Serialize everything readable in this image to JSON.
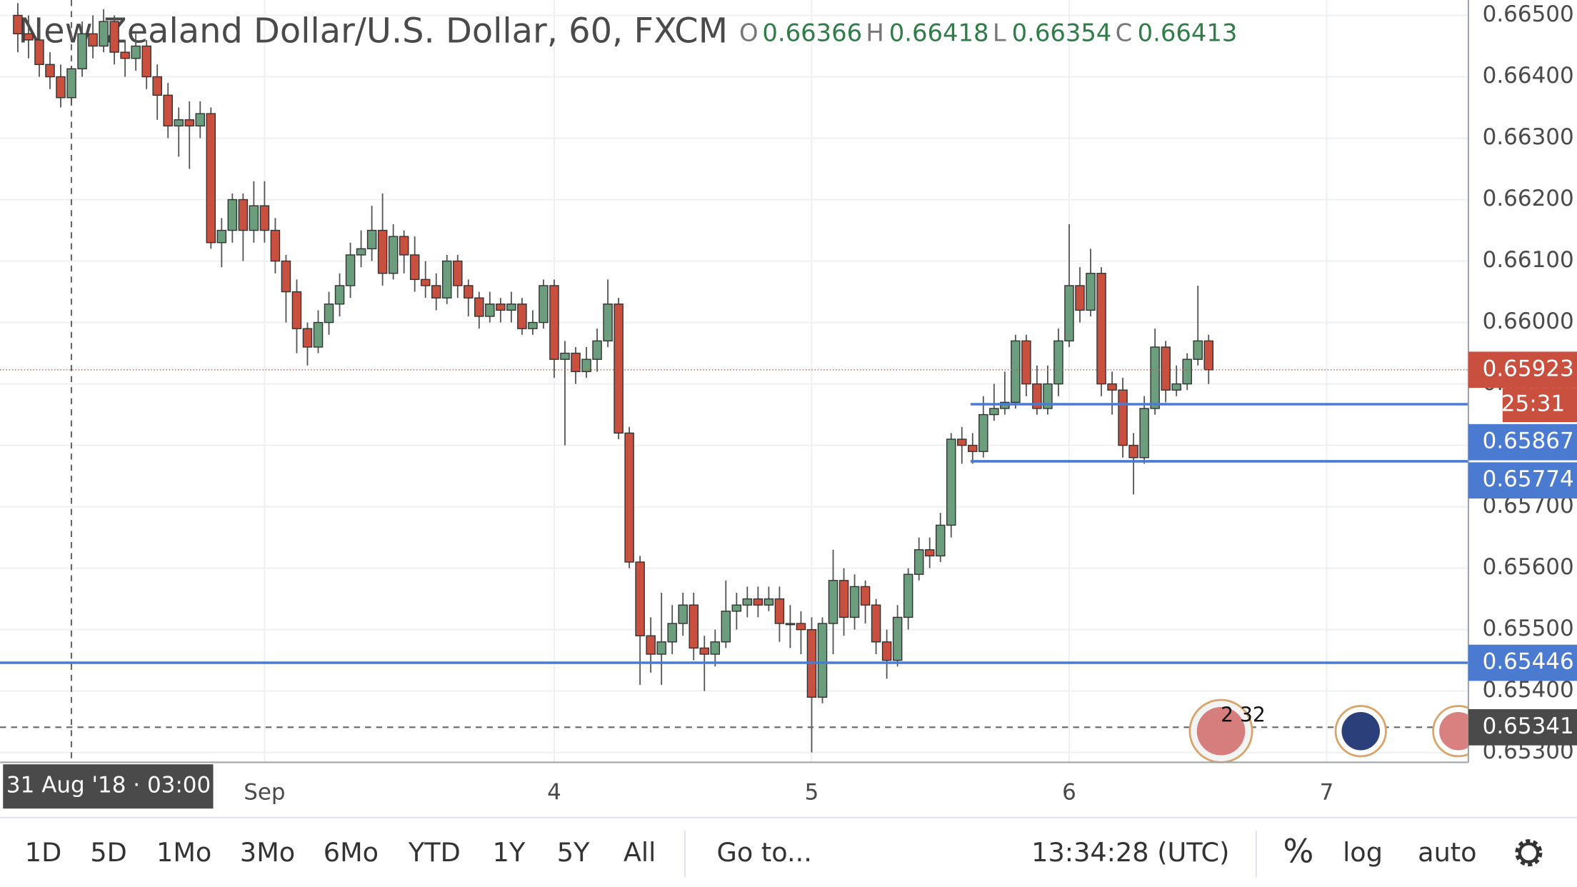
{
  "chart_data": {
    "type": "candlestick",
    "title": "New Zealand Dollar/U.S. Dollar, 60, FXCM",
    "ohlc_labels": [
      "O",
      "H",
      "L",
      "C"
    ],
    "up_color": "#6a9e7c",
    "down_color": "#c9503e",
    "categories": [
      null,
      null,
      null,
      null,
      null,
      null,
      null,
      null,
      null,
      null,
      null,
      null,
      null,
      null,
      null,
      null,
      null,
      null,
      null,
      null,
      null,
      null,
      null,
      "Sep",
      null,
      null,
      null,
      null,
      null,
      null,
      null,
      null,
      null,
      null,
      null,
      null,
      null,
      null,
      null,
      null,
      null,
      null,
      null,
      null,
      null,
      null,
      null,
      null,
      null,
      null,
      "4",
      null,
      null,
      null,
      null,
      null,
      null,
      null,
      null,
      null,
      null,
      null,
      null,
      null,
      null,
      null,
      null,
      null,
      null,
      null,
      null,
      null,
      null,
      null,
      "5",
      null,
      null,
      null,
      null,
      null,
      null,
      null,
      null,
      null,
      null,
      null,
      null,
      null,
      null,
      null,
      null,
      null,
      null,
      null,
      null,
      null,
      null,
      null,
      "6",
      null,
      null,
      null,
      null,
      null,
      null,
      null,
      null,
      null,
      null,
      null,
      null,
      null,
      null,
      null,
      null,
      null,
      null,
      null,
      null,
      null,
      null,
      null,
      "7"
    ],
    "open": [
      0.665,
      0.6647,
      0.6646,
      0.6642,
      0.664,
      0.66366,
      0.66413,
      0.6647,
      0.6645,
      0.6649,
      0.6644,
      0.6643,
      0.6645,
      0.664,
      0.6637,
      0.6632,
      0.6633,
      0.6632,
      0.6634,
      0.6613,
      0.6615,
      0.662,
      0.6615,
      0.6619,
      0.6615,
      0.661,
      0.6605,
      0.6599,
      0.6596,
      0.66,
      0.6603,
      0.6606,
      0.6611,
      0.6612,
      0.6615,
      0.6608,
      0.6614,
      0.6611,
      0.6607,
      0.6606,
      0.6604,
      0.661,
      0.6606,
      0.6604,
      0.6601,
      0.6603,
      0.6602,
      0.6603,
      0.6599,
      0.66,
      0.6606,
      0.6594,
      0.6595,
      0.6592,
      0.6594,
      0.6597,
      0.6603,
      0.6582,
      0.6561,
      0.6549,
      0.6546,
      0.6548,
      0.6551,
      0.6554,
      0.6547,
      0.6546,
      0.6548,
      0.6553,
      0.6554,
      0.6555,
      0.6554,
      0.6555,
      0.6551,
      0.6551,
      0.655,
      0.6539,
      0.6551,
      0.6558,
      0.6552,
      0.6557,
      0.6554,
      0.6548,
      0.6545,
      0.6552,
      0.6559,
      0.6563,
      0.6562,
      0.6567,
      0.6581,
      0.658,
      0.6579,
      0.6585,
      0.6586,
      0.6587,
      0.6597,
      0.659,
      0.6586,
      0.659,
      0.6597,
      0.6606,
      0.6602,
      0.6608,
      0.659,
      0.6589,
      0.658,
      0.6578,
      0.6586,
      0.6596,
      0.6589,
      0.659,
      0.6594,
      0.6597,
      null,
      null,
      null,
      null,
      null,
      null,
      null,
      null,
      null,
      null,
      null
    ],
    "high": [
      0.6652,
      0.665,
      0.6648,
      0.6644,
      0.6642,
      0.66418,
      0.6649,
      0.665,
      0.6651,
      0.665,
      0.6646,
      0.6647,
      0.6646,
      0.6642,
      0.6639,
      0.6635,
      0.6636,
      0.6636,
      0.6635,
      0.6617,
      0.6621,
      0.6621,
      0.6623,
      0.6623,
      0.6617,
      0.6611,
      0.6607,
      0.66,
      0.6602,
      0.6605,
      0.6608,
      0.6613,
      0.6615,
      0.6619,
      0.6621,
      0.6616,
      0.6615,
      0.6614,
      0.661,
      0.6608,
      0.6611,
      0.6611,
      0.6607,
      0.6605,
      0.6605,
      0.6604,
      0.6605,
      0.6604,
      0.6602,
      0.6607,
      0.6607,
      0.6597,
      0.6596,
      0.6596,
      0.6599,
      0.6607,
      0.6604,
      0.6583,
      0.6562,
      0.6552,
      0.6556,
      0.6554,
      0.6556,
      0.6556,
      0.6549,
      0.655,
      0.6558,
      0.6556,
      0.6557,
      0.6557,
      0.6557,
      0.6557,
      0.6554,
      0.6553,
      0.6552,
      0.6552,
      0.6563,
      0.656,
      0.6559,
      0.6558,
      0.6555,
      0.655,
      0.6554,
      0.656,
      0.6565,
      0.6565,
      0.6569,
      0.6582,
      0.6583,
      0.6582,
      0.6588,
      0.659,
      0.6592,
      0.6598,
      0.6598,
      0.6593,
      0.6593,
      0.6599,
      0.6616,
      0.6609,
      0.6612,
      0.6609,
      0.6592,
      0.6591,
      0.6582,
      0.6588,
      0.6599,
      0.6597,
      0.6593,
      0.6595,
      0.6606,
      0.6598,
      null,
      null,
      null,
      null,
      null,
      null,
      null,
      null,
      null,
      null,
      null
    ],
    "low": [
      0.6644,
      0.6643,
      0.664,
      0.6638,
      0.6635,
      0.66354,
      0.664,
      0.6643,
      0.6644,
      0.6642,
      0.664,
      0.6641,
      0.6638,
      0.6633,
      0.663,
      0.6627,
      0.6625,
      0.663,
      0.6612,
      0.6609,
      0.6613,
      0.661,
      0.6613,
      0.6613,
      0.6608,
      0.66,
      0.6595,
      0.6593,
      0.6595,
      0.6598,
      0.6601,
      0.6604,
      0.6609,
      0.661,
      0.6606,
      0.6607,
      0.6608,
      0.6605,
      0.6604,
      0.6602,
      0.6603,
      0.6604,
      0.6601,
      0.6599,
      0.66,
      0.66,
      0.66,
      0.6598,
      0.6598,
      0.6599,
      0.6591,
      0.658,
      0.659,
      0.6591,
      0.6592,
      0.6596,
      0.6581,
      0.656,
      0.6541,
      0.6543,
      0.6541,
      0.6546,
      0.6549,
      0.6545,
      0.654,
      0.6544,
      0.6547,
      0.655,
      0.6552,
      0.6552,
      0.6553,
      0.6548,
      0.6547,
      0.6546,
      0.653,
      0.6538,
      0.6546,
      0.6549,
      0.655,
      0.6551,
      0.6546,
      0.6542,
      0.6544,
      0.655,
      0.6558,
      0.656,
      0.6561,
      0.6565,
      0.6577,
      0.6577,
      0.6578,
      0.6584,
      0.6585,
      0.6586,
      0.6588,
      0.6585,
      0.6585,
      0.6588,
      0.6596,
      0.66,
      0.6601,
      0.6588,
      0.6585,
      0.6578,
      0.6572,
      0.6577,
      0.6585,
      0.6587,
      0.6588,
      0.6589,
      0.6593,
      0.659,
      null,
      null,
      null,
      null,
      null,
      null,
      null,
      null,
      null,
      null,
      null
    ],
    "close": [
      0.6647,
      0.6646,
      0.6642,
      0.664,
      0.66366,
      0.66413,
      0.6647,
      0.6645,
      0.6649,
      0.6644,
      0.6643,
      0.6645,
      0.664,
      0.6637,
      0.6632,
      0.6633,
      0.6632,
      0.6634,
      0.6613,
      0.6615,
      0.662,
      0.6615,
      0.6619,
      0.6615,
      0.661,
      0.6605,
      0.6599,
      0.6596,
      0.66,
      0.6603,
      0.6606,
      0.6611,
      0.6612,
      0.6615,
      0.6608,
      0.6614,
      0.6611,
      0.6607,
      0.6606,
      0.6604,
      0.661,
      0.6606,
      0.6604,
      0.6601,
      0.6603,
      0.6602,
      0.6603,
      0.6599,
      0.66,
      0.6606,
      0.6594,
      0.6595,
      0.6592,
      0.6594,
      0.6597,
      0.6603,
      0.6582,
      0.6561,
      0.6549,
      0.6546,
      0.6548,
      0.6551,
      0.6554,
      0.6547,
      0.6546,
      0.6548,
      0.6553,
      0.6554,
      0.6555,
      0.6554,
      0.6555,
      0.6551,
      0.6551,
      0.655,
      0.6539,
      0.6551,
      0.6558,
      0.6552,
      0.6557,
      0.6554,
      0.6548,
      0.6545,
      0.6552,
      0.6559,
      0.6563,
      0.6562,
      0.6567,
      0.6581,
      0.658,
      0.6579,
      0.6585,
      0.6586,
      0.6587,
      0.6597,
      0.659,
      0.6586,
      0.659,
      0.6597,
      0.6606,
      0.6602,
      0.6608,
      0.659,
      0.6589,
      0.658,
      0.6578,
      0.6586,
      0.6596,
      0.6589,
      0.659,
      0.6594,
      0.6597,
      0.65923,
      null,
      null,
      null,
      null,
      null,
      null,
      null,
      null,
      null,
      null,
      null
    ],
    "ylim": [
      0.65284,
      0.66525
    ],
    "yticks": [
      {
        "value": 0.653,
        "label": "0.65300"
      },
      {
        "value": 0.654,
        "label": "0.65400"
      },
      {
        "value": 0.655,
        "label": "0.65500"
      },
      {
        "value": 0.656,
        "label": "0.65600"
      },
      {
        "value": 0.657,
        "label": "0.65700"
      },
      {
        "value": 0.658,
        "label": "0.65800"
      },
      {
        "value": 0.659,
        "label": "0.65900"
      },
      {
        "value": 0.66,
        "label": "0.66000"
      },
      {
        "value": 0.661,
        "label": "0.66100"
      },
      {
        "value": 0.662,
        "label": "0.66200"
      },
      {
        "value": 0.663,
        "label": "0.66300"
      },
      {
        "value": 0.664,
        "label": "0.66400"
      },
      {
        "value": 0.665,
        "label": "0.66500"
      }
    ],
    "grid": true,
    "last_price": {
      "value": 0.65923,
      "color": "#c9503e",
      "countdown": "25:31"
    },
    "price_lines": [
      {
        "value": 0.65867,
        "color": "#4a7bd0"
      },
      {
        "value": 0.65774,
        "color": "#4a7bd0"
      },
      {
        "value": 0.65446,
        "color": "#4a7bd0"
      }
    ],
    "crosshair": {
      "value": 0.65341,
      "color": "#4a4a4a",
      "x_label": "31 Aug '18 · 03:00"
    },
    "event_badge": "2 32"
  },
  "toolbar": {
    "ranges": [
      "1D",
      "5D",
      "1Mo",
      "3Mo",
      "6Mo",
      "YTD",
      "1Y",
      "5Y",
      "All"
    ],
    "go_to": "Go to...",
    "clock": "13:34:28 (UTC)",
    "percent": "%",
    "log": "log",
    "auto": "auto"
  }
}
